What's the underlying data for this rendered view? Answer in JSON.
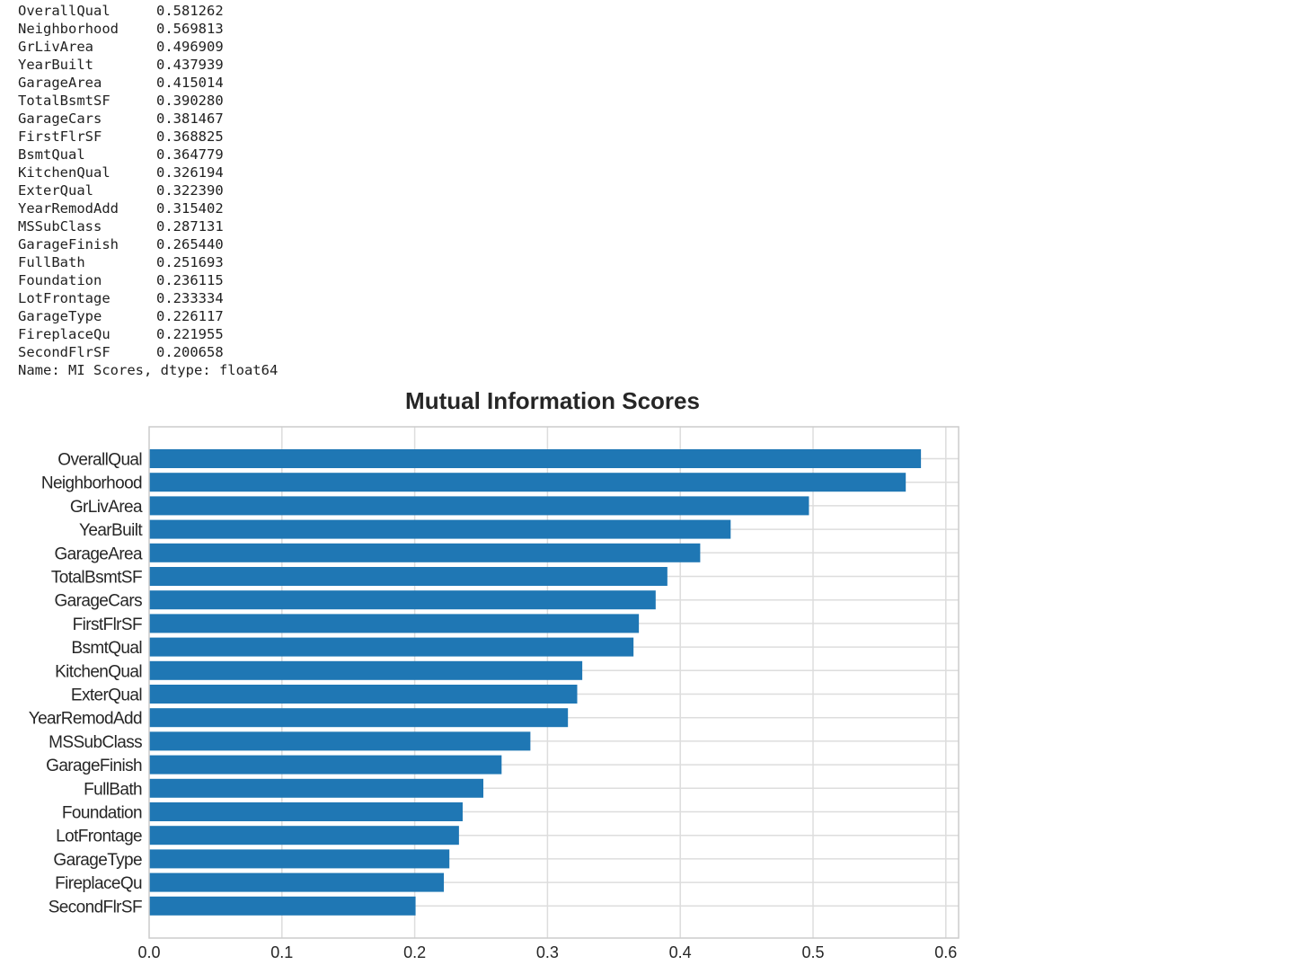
{
  "console_output": {
    "rows": [
      {
        "name": "OverallQual",
        "score": "0.581262"
      },
      {
        "name": "Neighborhood",
        "score": "0.569813"
      },
      {
        "name": "GrLivArea",
        "score": "0.496909"
      },
      {
        "name": "YearBuilt",
        "score": "0.437939"
      },
      {
        "name": "GarageArea",
        "score": "0.415014"
      },
      {
        "name": "TotalBsmtSF",
        "score": "0.390280"
      },
      {
        "name": "GarageCars",
        "score": "0.381467"
      },
      {
        "name": "FirstFlrSF",
        "score": "0.368825"
      },
      {
        "name": "BsmtQual",
        "score": "0.364779"
      },
      {
        "name": "KitchenQual",
        "score": "0.326194"
      },
      {
        "name": "ExterQual",
        "score": "0.322390"
      },
      {
        "name": "YearRemodAdd",
        "score": "0.315402"
      },
      {
        "name": "MSSubClass",
        "score": "0.287131"
      },
      {
        "name": "GarageFinish",
        "score": "0.265440"
      },
      {
        "name": "FullBath",
        "score": "0.251693"
      },
      {
        "name": "Foundation",
        "score": "0.236115"
      },
      {
        "name": "LotFrontage",
        "score": "0.233334"
      },
      {
        "name": "GarageType",
        "score": "0.226117"
      },
      {
        "name": "FireplaceQu",
        "score": "0.221955"
      },
      {
        "name": "SecondFlrSF",
        "score": "0.200658"
      }
    ],
    "footer": "Name: MI Scores, dtype: float64"
  },
  "chart_data": {
    "type": "bar",
    "orientation": "horizontal",
    "title": "Mutual Information Scores",
    "xlabel": "",
    "ylabel": "",
    "categories": [
      "OverallQual",
      "Neighborhood",
      "GrLivArea",
      "YearBuilt",
      "GarageArea",
      "TotalBsmtSF",
      "GarageCars",
      "FirstFlrSF",
      "BsmtQual",
      "KitchenQual",
      "ExterQual",
      "YearRemodAdd",
      "MSSubClass",
      "GarageFinish",
      "FullBath",
      "Foundation",
      "LotFrontage",
      "GarageType",
      "FireplaceQu",
      "SecondFlrSF"
    ],
    "values": [
      0.581262,
      0.569813,
      0.496909,
      0.437939,
      0.415014,
      0.39028,
      0.381467,
      0.368825,
      0.364779,
      0.326194,
      0.32239,
      0.315402,
      0.287131,
      0.26544,
      0.251693,
      0.236115,
      0.233334,
      0.226117,
      0.221955,
      0.200658
    ],
    "xlim": [
      0,
      0.611
    ],
    "xticks": [
      0.0,
      0.1,
      0.2,
      0.3,
      0.4,
      0.5,
      0.6
    ],
    "xtick_labels": [
      "0.0",
      "0.1",
      "0.2",
      "0.3",
      "0.4",
      "0.5",
      "0.6"
    ],
    "grid": true,
    "bar_color": "#1f77b4",
    "grid_color": "#dddddd",
    "frame_color": "#cccccc"
  }
}
